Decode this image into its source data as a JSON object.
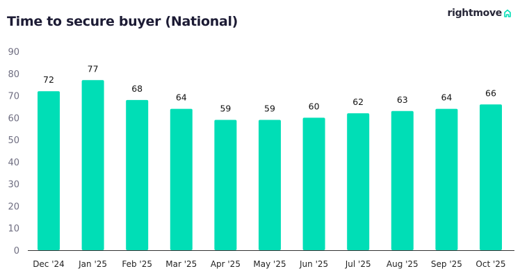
{
  "chart_data": {
    "type": "bar",
    "title": "Time to secure buyer (National)",
    "categories": [
      "Dec '24",
      "Jan '25",
      "Feb '25",
      "Mar '25",
      "Apr '25",
      "May '25",
      "Jun '25",
      "Jul '25",
      "Aug '25",
      "Sep '25",
      "Oct '25"
    ],
    "values": [
      72,
      77,
      68,
      64,
      59,
      59,
      60,
      62,
      63,
      64,
      66
    ],
    "xlabel": "",
    "ylabel": "",
    "ylim": [
      0,
      90
    ],
    "yticks": [
      0,
      10,
      20,
      30,
      40,
      50,
      60,
      70,
      80,
      90
    ],
    "grid": false,
    "data_labels": true,
    "colors": {
      "bar": "#00deb6",
      "tick_text": "#6e6d80",
      "label_text": "#111111",
      "axis": "#333333"
    }
  },
  "brand": {
    "name": "rightmove",
    "icon": "house-icon",
    "color": "#00deb6"
  }
}
